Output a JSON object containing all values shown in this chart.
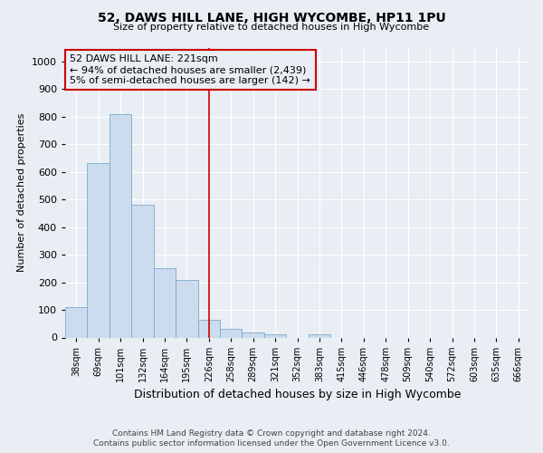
{
  "title": "52, DAWS HILL LANE, HIGH WYCOMBE, HP11 1PU",
  "subtitle": "Size of property relative to detached houses in High Wycombe",
  "xlabel": "Distribution of detached houses by size in High Wycombe",
  "ylabel": "Number of detached properties",
  "footer_line1": "Contains HM Land Registry data © Crown copyright and database right 2024.",
  "footer_line2": "Contains public sector information licensed under the Open Government Licence v3.0.",
  "bar_labels": [
    "38sqm",
    "69sqm",
    "101sqm",
    "132sqm",
    "164sqm",
    "195sqm",
    "226sqm",
    "258sqm",
    "289sqm",
    "321sqm",
    "352sqm",
    "383sqm",
    "415sqm",
    "446sqm",
    "478sqm",
    "509sqm",
    "540sqm",
    "572sqm",
    "603sqm",
    "635sqm",
    "666sqm"
  ],
  "bar_values": [
    110,
    630,
    810,
    480,
    250,
    210,
    65,
    30,
    18,
    10,
    0,
    10,
    0,
    0,
    0,
    0,
    0,
    0,
    0,
    0,
    0
  ],
  "bar_color": "#ccdcee",
  "bar_edge_color": "#7aaac8",
  "highlight_label": "226sqm",
  "annotation_title": "52 DAWS HILL LANE: 221sqm",
  "annotation_line1": "← 94% of detached houses are smaller (2,439)",
  "annotation_line2": "5% of semi-detached houses are larger (142) →",
  "annotation_box_color": "#cc0000",
  "vline_color": "#cc0000",
  "background_color": "#e8eef4",
  "grid_color": "#ffffff",
  "ylim": [
    0,
    1050
  ],
  "yticks": [
    0,
    100,
    200,
    300,
    400,
    500,
    600,
    700,
    800,
    900,
    1000
  ]
}
